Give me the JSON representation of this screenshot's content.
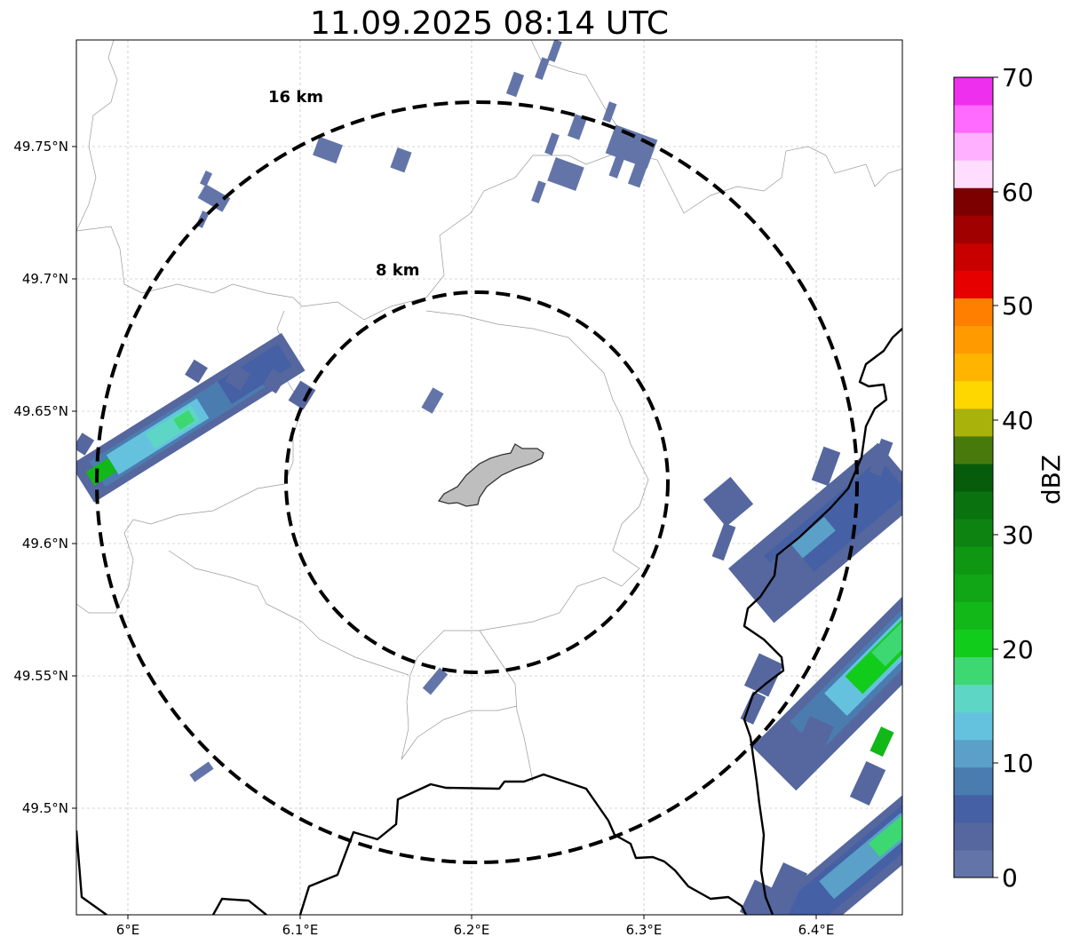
{
  "title": "11.09.2025 08:14 UTC",
  "map": {
    "x_ticks": [
      "6°E",
      "6.1°E",
      "6.2°E",
      "6.3°E",
      "6.4°E"
    ],
    "y_ticks": [
      "49.75°N",
      "49.7°N",
      "49.65°N",
      "49.6°N",
      "49.55°N",
      "49.5°N"
    ],
    "range_rings": [
      {
        "label": "8 km"
      },
      {
        "label": "16 km"
      }
    ],
    "grid": true
  },
  "colorbar": {
    "label": "dBZ",
    "ticks": [
      "0",
      "10",
      "20",
      "30",
      "40",
      "50",
      "60",
      "70"
    ],
    "colors": [
      "#6375a8",
      "#55679e",
      "#4560a4",
      "#4b7cb0",
      "#5aa0c8",
      "#65c2de",
      "#5ed6c6",
      "#3dd872",
      "#12cc1c",
      "#12b818",
      "#10a615",
      "#0f9714",
      "#0d8411",
      "#0a730f",
      "#075c0b",
      "#477a0a",
      "#a8b20a",
      "#ffd700",
      "#ffb400",
      "#ff9a00",
      "#ff7f00",
      "#e60000",
      "#c80000",
      "#a00000",
      "#7d0000",
      "#ffddff",
      "#ffb0ff",
      "#ff6aff",
      "#ee30ee"
    ]
  }
}
